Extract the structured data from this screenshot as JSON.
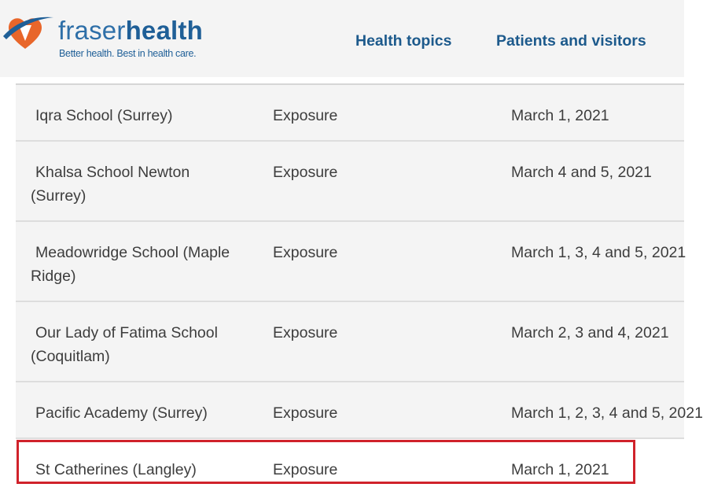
{
  "header": {
    "logo": {
      "word_light": "fraser",
      "word_bold": "health",
      "tagline": "Better health. Best in health care."
    },
    "nav": [
      {
        "label": "Health topics"
      },
      {
        "label": "Patients and visitors"
      }
    ]
  },
  "table": {
    "rows": [
      {
        "school": "Iqra School (Surrey)",
        "type": "Exposure",
        "dates": "March 1, 2021"
      },
      {
        "school": "Khalsa School Newton (Surrey)",
        "type": "Exposure",
        "dates": "March 4 and 5, 2021"
      },
      {
        "school": "Meadowridge School (Maple Ridge)",
        "type": "Exposure",
        "dates": "March 1, 3, 4 and 5, 2021"
      },
      {
        "school": "Our Lady of Fatima School (Coquitlam)",
        "type": "Exposure",
        "dates": "March 2, 3 and 4, 2021"
      },
      {
        "school": "Pacific Academy (Surrey)",
        "type": "Exposure",
        "dates": "March 1, 2, 3, 4 and 5, 2021"
      },
      {
        "school": "St Catherines (Langley)",
        "type": "Exposure",
        "dates": "March 1, 2021"
      }
    ]
  },
  "colors": {
    "brand_blue": "#1f5f97",
    "brand_orange": "#e8662a",
    "highlight_red": "#d0222b"
  }
}
